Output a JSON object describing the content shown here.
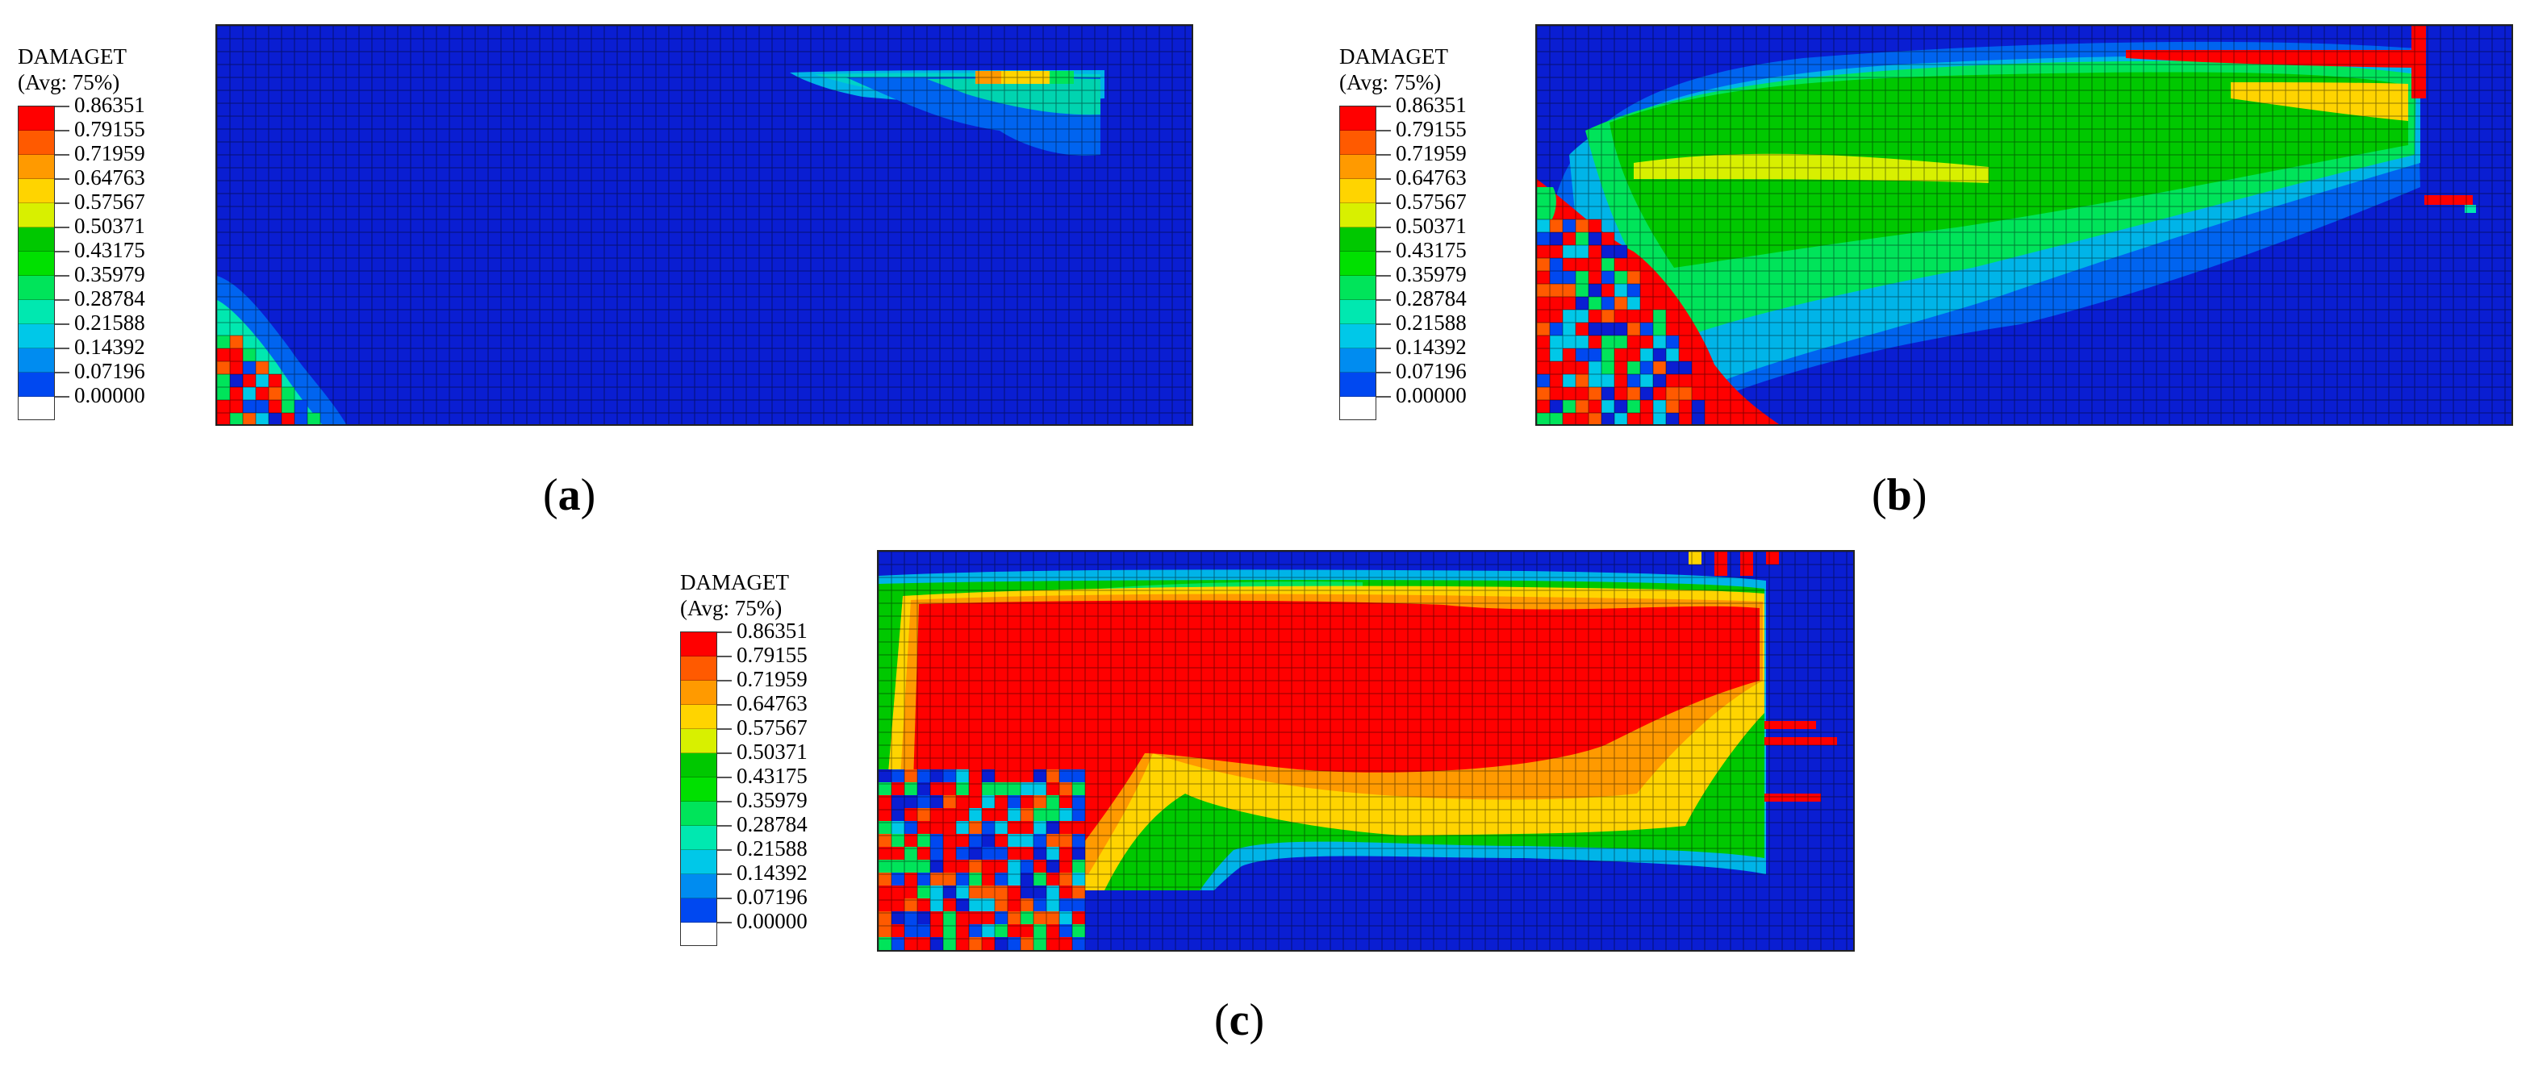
{
  "legend": {
    "title": "DAMAGET",
    "subtitle": "(Avg: 75%)",
    "values": [
      "0.86351",
      "0.79155",
      "0.71959",
      "0.64763",
      "0.57567",
      "0.50371",
      "0.43175",
      "0.35979",
      "0.28784",
      "0.21588",
      "0.14392",
      "0.07196",
      "0.00000"
    ],
    "colors": [
      "#ff0000",
      "#ff5a00",
      "#ff9a00",
      "#ffd400",
      "#d8f000",
      "#00c800",
      "#00e000",
      "#00e45a",
      "#00e8b0",
      "#00c8e8",
      "#008cf0",
      "#0048f0",
      "#0000f0"
    ]
  },
  "panels": [
    {
      "id": "a",
      "label_open": "(",
      "label_letter": "a",
      "label_close": ")"
    },
    {
      "id": "b",
      "label_open": "(",
      "label_letter": "b",
      "label_close": ")"
    },
    {
      "id": "c",
      "label_open": "(",
      "label_letter": "c",
      "label_close": ")"
    }
  ]
}
